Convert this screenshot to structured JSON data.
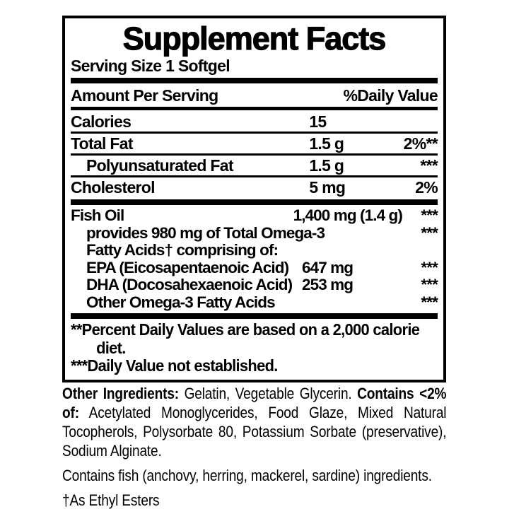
{
  "colors": {
    "text": "#000000",
    "background": "#ffffff"
  },
  "panel": {
    "title": "Supplement Facts",
    "serving_size": "Serving Size 1 Softgel",
    "columns": {
      "amount": "Amount Per Serving",
      "daily_value": "%Daily Value"
    },
    "nutrients": [
      {
        "name": "Calories",
        "amount": "15",
        "dv": ""
      },
      {
        "name": "Total Fat",
        "amount": "1.5 g",
        "dv": "2%**"
      },
      {
        "name": "Polyunsaturated Fat",
        "amount": "1.5 g",
        "dv": "***"
      },
      {
        "name": "Cholesterol",
        "amount": "5 mg",
        "dv": "2%"
      }
    ],
    "fish_oil": [
      {
        "name": "Fish Oil",
        "amount": "1,400 mg (1.4 g)",
        "dv": "***"
      },
      {
        "name": "provides 980 mg of Total Omega-3",
        "amount": "",
        "dv": "***"
      },
      {
        "name": "Fatty Acids† comprising of:",
        "amount": "",
        "dv": ""
      },
      {
        "name": "EPA (Eicosapentaenoic Acid)",
        "amount": "647 mg",
        "dv": "***"
      },
      {
        "name": "DHA (Docosahexaenoic Acid)",
        "amount": "253 mg",
        "dv": "***"
      },
      {
        "name": "Other Omega-3 Fatty Acids",
        "amount": "",
        "dv": "***"
      }
    ],
    "footnotes": {
      "daily_values": "**Percent Daily Values are based on a 2,000 calorie diet.",
      "not_established": "***Daily Value not established."
    }
  },
  "below": {
    "other_ingredients_label": "Other Ingredients:",
    "other_ingredients_text": " Gelatin, Vegetable Glycerin. ",
    "contains_label": "Contains <2% of:",
    "contains_text": " Acetylated Monoglycerides, Food Glaze, Mixed Natural Tocopherols, Polysorbate 80, Potassium Sorbate (preservative), Sodium Alginate.",
    "allergen": "Contains fish (anchovy, herring, mackerel, sardine) ingredients.",
    "ethyl_esters": "†As Ethyl Esters"
  }
}
